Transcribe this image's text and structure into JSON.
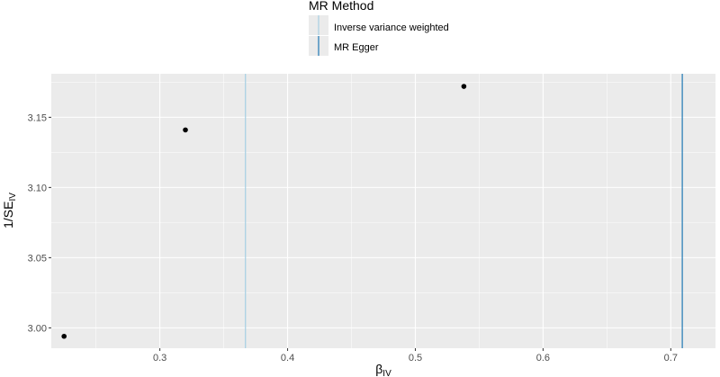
{
  "chart_data": {
    "type": "scatter",
    "title": "",
    "xlabel": "β",
    "xlabel_sub": "IV",
    "ylabel": "1/SE",
    "ylabel_sub": "IV",
    "xlim": [
      0.215,
      0.735
    ],
    "ylim": [
      2.9855,
      3.181
    ],
    "xticks": [
      0.3,
      0.4,
      0.5,
      0.6,
      0.7
    ],
    "xtick_labels": [
      "0.3",
      "0.4",
      "0.5",
      "0.6",
      "0.7"
    ],
    "yticks": [
      3.0,
      3.05,
      3.1,
      3.15
    ],
    "ytick_labels": [
      "3.00",
      "3.05",
      "3.10",
      "3.15"
    ],
    "grid": true,
    "points": [
      {
        "x": 0.225,
        "y": 2.994
      },
      {
        "x": 0.32,
        "y": 3.141
      },
      {
        "x": 0.538,
        "y": 3.172
      }
    ],
    "vlines": [
      {
        "name": "Inverse variance weighted",
        "x": 0.367,
        "color": "#a6cee3"
      },
      {
        "name": "MR Egger",
        "x": 0.709,
        "color": "#1f78b4"
      }
    ],
    "legend": {
      "title": "MR Method",
      "position": "top",
      "items": [
        "Inverse variance weighted",
        "MR Egger"
      ]
    },
    "colors": {
      "panel": "#ebebeb",
      "grid_major": "#ffffff",
      "point": "#000000"
    }
  }
}
